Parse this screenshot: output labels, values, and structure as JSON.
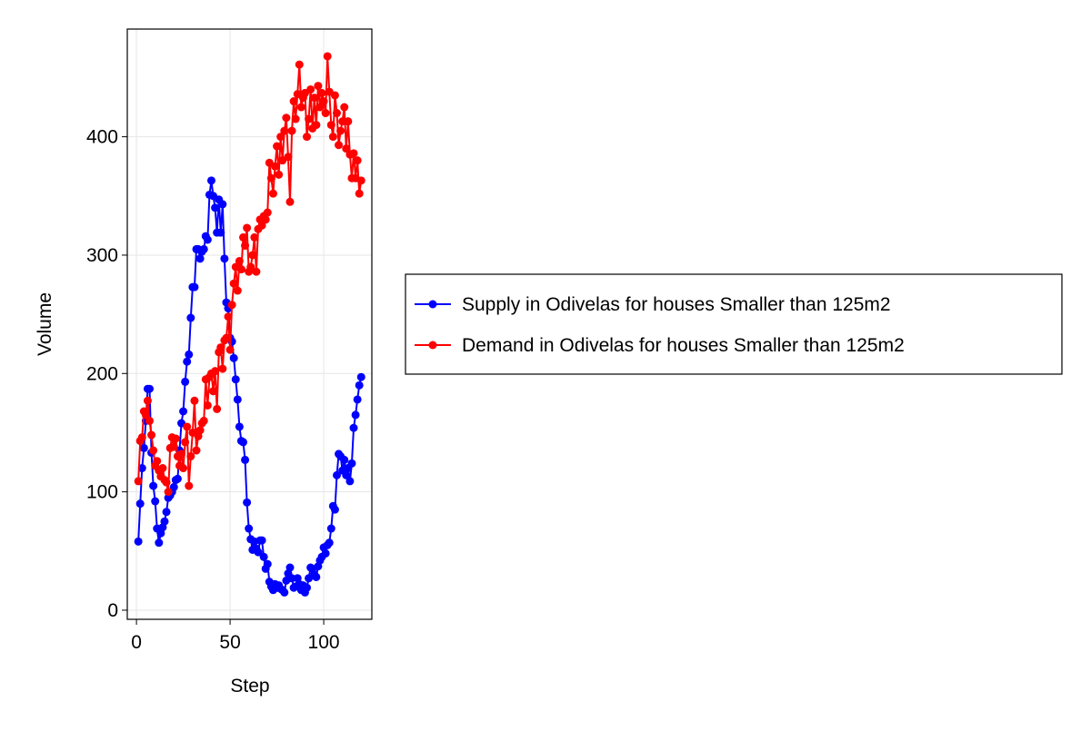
{
  "chart_data": {
    "type": "line",
    "x_label": "Step",
    "y_label": "Volume",
    "xlim": [
      -4.9,
      125.7
    ],
    "ylim": [
      -7.7,
      491
    ],
    "xticks": [
      0,
      50,
      100
    ],
    "yticks": [
      0,
      100,
      200,
      300,
      400
    ],
    "grid": true,
    "legend": "right",
    "x": [
      1,
      2,
      3,
      4,
      5,
      6,
      7,
      8,
      9,
      10,
      11,
      12,
      13,
      14,
      15,
      16,
      17,
      18,
      19,
      20,
      21,
      22,
      23,
      24,
      25,
      26,
      27,
      28,
      29,
      30,
      31,
      32,
      33,
      34,
      35,
      36,
      37,
      38,
      39,
      40,
      41,
      42,
      43,
      44,
      45,
      46,
      47,
      48,
      49,
      50,
      51,
      52,
      53,
      54,
      55,
      56,
      57,
      58,
      59,
      60,
      61,
      62,
      63,
      64,
      65,
      66,
      67,
      68,
      69,
      70,
      71,
      72,
      73,
      74,
      75,
      76,
      77,
      78,
      79,
      80,
      81,
      82,
      83,
      84,
      85,
      86,
      87,
      88,
      89,
      90,
      91,
      92,
      93,
      94,
      95,
      96,
      97,
      98,
      99,
      100,
      101,
      102,
      103,
      104,
      105,
      106,
      107,
      108,
      109,
      110,
      111,
      112,
      113,
      114,
      115,
      116,
      117,
      118,
      119,
      120
    ],
    "series": [
      {
        "name": "Supply in Odivelas for houses Smaller than 125m2",
        "color": "#0000ff",
        "values": [
          58,
          90,
          120,
          137,
          160,
          187,
          187,
          133,
          105,
          92,
          69,
          57,
          65,
          70,
          75,
          83,
          95,
          97,
          100,
          104,
          110,
          111,
          135,
          158,
          168,
          193,
          210,
          216,
          247,
          273,
          273,
          305,
          305,
          297,
          303,
          305,
          316,
          313,
          351,
          363,
          350,
          340,
          319,
          347,
          319,
          343,
          297,
          260,
          255,
          230,
          227,
          213,
          195,
          178,
          155,
          143,
          142,
          127,
          91,
          69,
          60,
          51,
          58,
          52,
          49,
          59,
          59,
          45,
          35,
          39,
          24,
          20,
          17,
          22,
          19,
          21,
          18,
          17,
          15,
          25,
          31,
          36,
          27,
          19,
          20,
          27,
          22,
          17,
          21,
          15,
          19,
          27,
          36,
          35,
          30,
          28,
          37,
          42,
          45,
          53,
          48,
          55,
          57,
          69,
          88,
          85,
          114,
          132,
          130,
          118,
          127,
          114,
          120,
          109,
          124,
          154,
          165,
          178,
          190,
          197
        ]
      },
      {
        "name": "Demand in Odivelas for houses Smaller than 125m2",
        "color": "#ff0000",
        "values": [
          109,
          143,
          146,
          168,
          165,
          177,
          160,
          148,
          135,
          122,
          126,
          118,
          113,
          120,
          110,
          108,
          100,
          137,
          146,
          138,
          145,
          130,
          122,
          132,
          120,
          142,
          155,
          105,
          130,
          150,
          177,
          135,
          147,
          152,
          158,
          160,
          195,
          173,
          197,
          200,
          185,
          202,
          170,
          218,
          222,
          204,
          228,
          230,
          248,
          220,
          258,
          276,
          290,
          270,
          295,
          288,
          315,
          308,
          323,
          286,
          290,
          300,
          315,
          286,
          322,
          330,
          325,
          333,
          330,
          336,
          378,
          365,
          352,
          375,
          392,
          368,
          400,
          380,
          405,
          416,
          383,
          345,
          405,
          430,
          415,
          436,
          461,
          425,
          433,
          437,
          400,
          415,
          440,
          407,
          433,
          410,
          443,
          425,
          437,
          430,
          420,
          468,
          438,
          410,
          400,
          435,
          420,
          393,
          405,
          413,
          425,
          390,
          413,
          385,
          365,
          386,
          365,
          380,
          352,
          363
        ]
      }
    ]
  }
}
